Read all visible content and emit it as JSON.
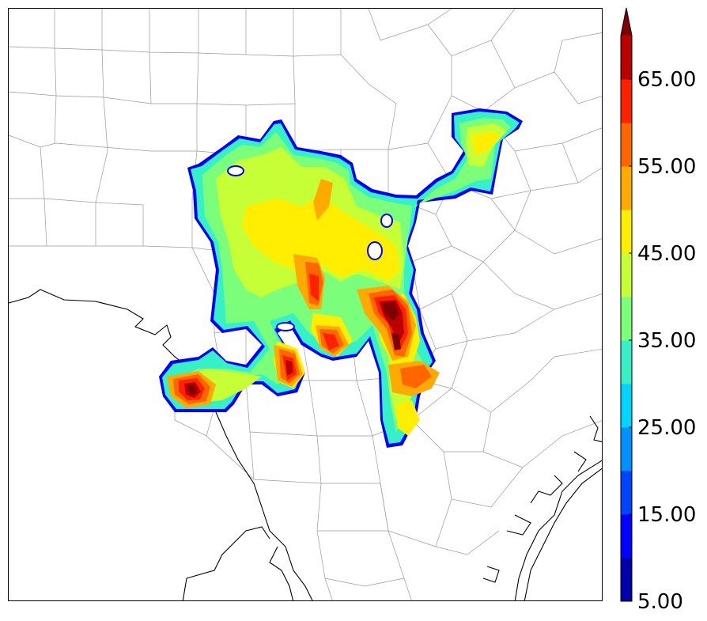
{
  "map": {
    "projection_note_hidden": "",
    "land_color": "#ffffff",
    "county_line_color": "#9a9a9a",
    "coast_line_color": "#000000"
  },
  "colorbar": {
    "extend": "max",
    "levels": [
      5,
      10,
      15,
      20,
      25,
      30,
      35,
      40,
      45,
      50,
      55,
      60,
      65,
      70
    ],
    "colors": [
      "#0000aa",
      "#0000ff",
      "#0044ff",
      "#0090ff",
      "#00d4ff",
      "#36f0c6",
      "#7bff7b",
      "#c6ff36",
      "#ffee00",
      "#ffaa00",
      "#ff6600",
      "#ff2200",
      "#bb0000",
      "#800000"
    ],
    "tick_labels": [
      {
        "value": 5,
        "label": "5.00"
      },
      {
        "value": 15,
        "label": "15.00"
      },
      {
        "value": 25,
        "label": "25.00"
      },
      {
        "value": 35,
        "label": "35.00"
      },
      {
        "value": 45,
        "label": "45.00"
      },
      {
        "value": 55,
        "label": "55.00"
      },
      {
        "value": 65,
        "label": "65.00"
      }
    ]
  }
}
